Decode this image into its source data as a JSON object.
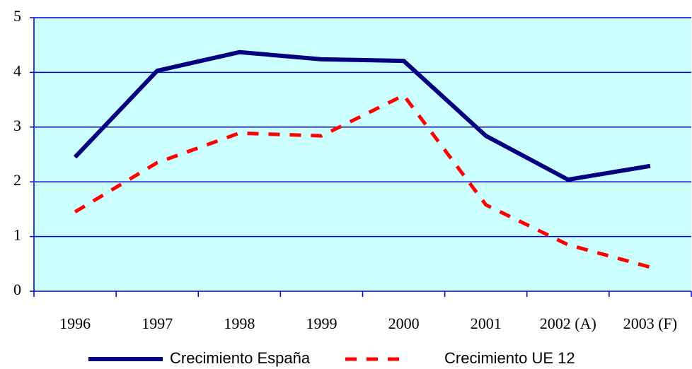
{
  "chart_data": {
    "type": "line",
    "categories": [
      "1996",
      "1997",
      "1998",
      "1999",
      "2000",
      "2001",
      "2002 (A)",
      "2003 (F)"
    ],
    "series": [
      {
        "name": "Crecimiento España",
        "color": "#000080",
        "values": [
          2.45,
          4.03,
          4.37,
          4.24,
          4.21,
          2.84,
          2.04,
          2.29
        ]
      },
      {
        "name": "Crecimiento UE 12",
        "color": "#ff0000",
        "values": [
          1.45,
          2.35,
          2.89,
          2.84,
          3.58,
          1.58,
          0.85,
          0.44
        ]
      }
    ],
    "ylim": [
      0,
      5
    ],
    "yticks": [
      0,
      1,
      2,
      3,
      4,
      5
    ],
    "grid": true,
    "legend": "bottom"
  }
}
